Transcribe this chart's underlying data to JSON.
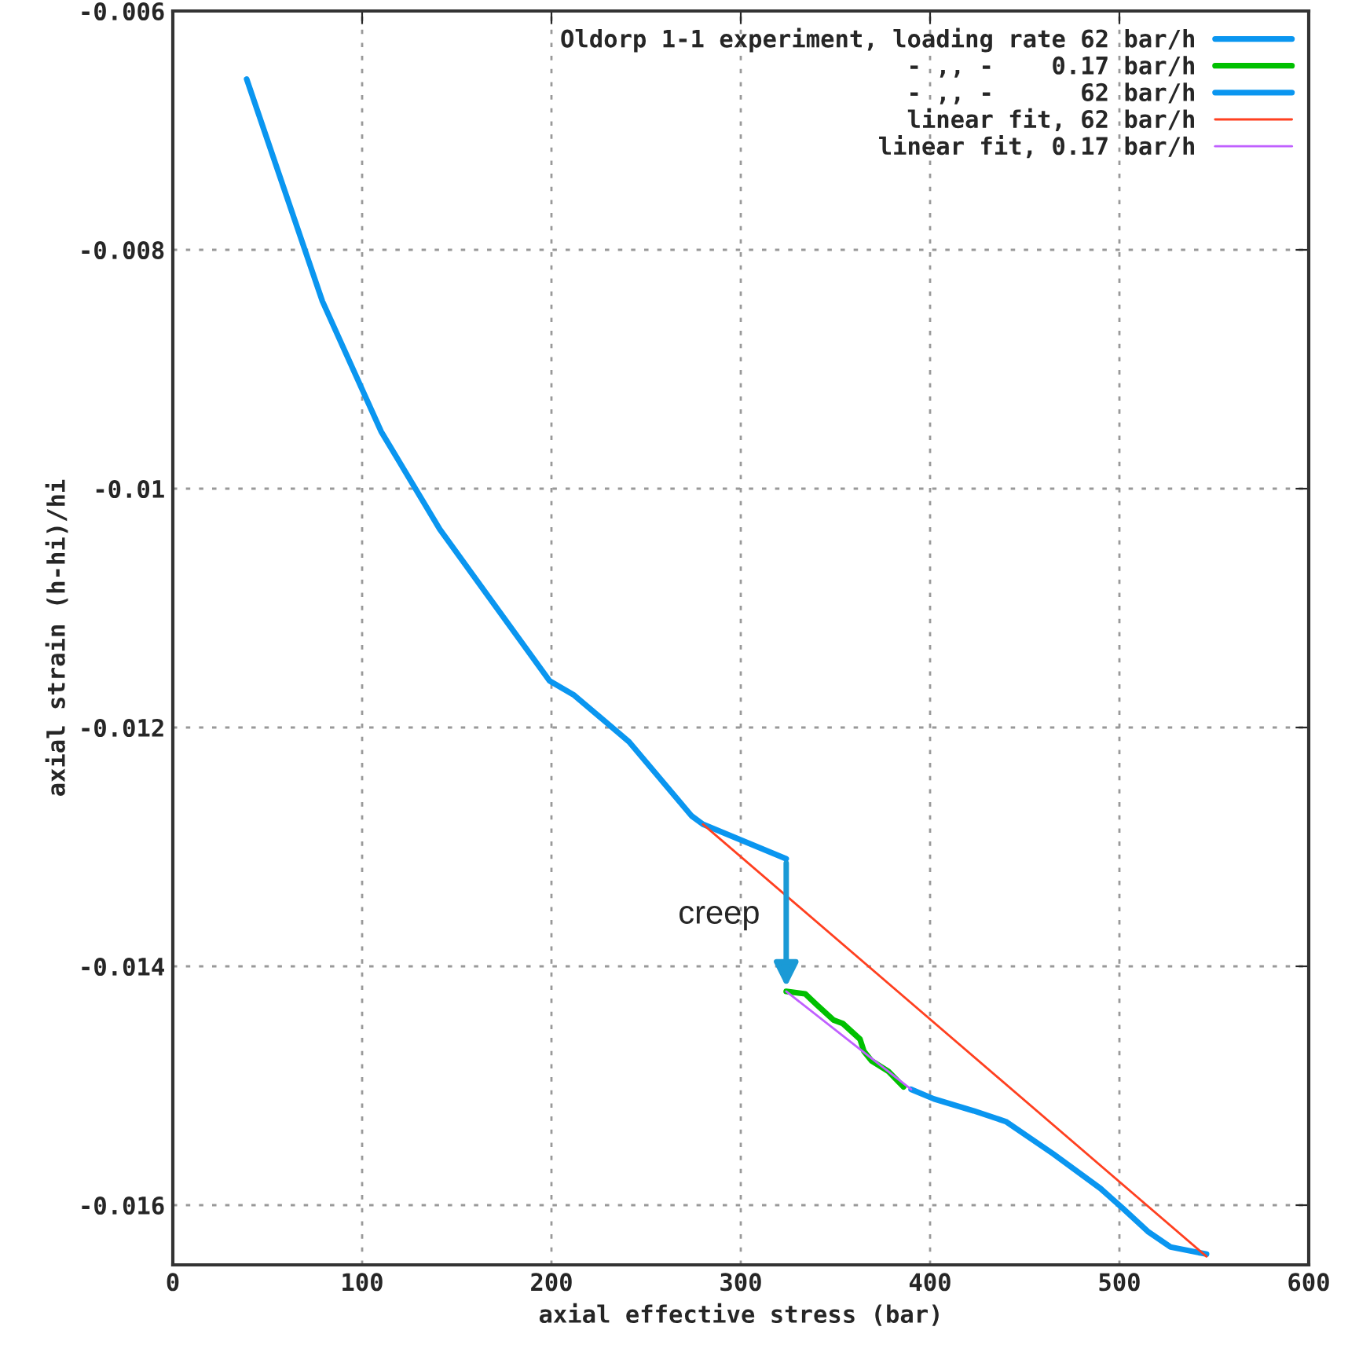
{
  "chart_data": {
    "type": "line",
    "xlabel": "axial effective stress (bar)",
    "ylabel": "axial strain (h-hi)/hi",
    "xlim": [
      0,
      600
    ],
    "xticks": [
      0,
      100,
      200,
      300,
      400,
      500,
      600
    ],
    "ylim": [
      -0.0165,
      -0.006
    ],
    "yticks": [
      -0.016,
      -0.014,
      -0.012,
      -0.01,
      -0.008,
      -0.006
    ],
    "grid": true,
    "legend": "top right",
    "marker": "none",
    "line_style": "solid",
    "series": [
      {
        "name": "Oldorp 1-1 experiment, loading rate 62 bar/h",
        "color": "#0a96f0",
        "x": [
          39,
          79,
          110,
          141,
          199,
          212,
          241,
          274,
          280,
          324
        ],
        "values": [
          -0.00657,
          -0.00843,
          -0.00952,
          -0.01034,
          -0.01161,
          -0.01173,
          -0.01212,
          -0.01274,
          -0.01281,
          -0.0131
        ]
      },
      {
        "name": "- ,, -    0.17 bar/h",
        "color": "#00c000",
        "x": [
          324,
          334,
          340,
          349,
          354,
          363,
          365,
          369,
          378,
          386
        ],
        "values": [
          -0.01421,
          -0.01423,
          -0.01432,
          -0.01445,
          -0.01448,
          -0.01461,
          -0.01471,
          -0.01479,
          -0.01488,
          -0.01501
        ]
      },
      {
        "name": "- ,, -      62 bar/h",
        "color": "#0a96f0",
        "x": [
          390,
          402,
          423,
          440,
          465,
          490,
          502,
          515,
          527,
          546
        ],
        "values": [
          -0.01503,
          -0.01511,
          -0.01521,
          -0.0153,
          -0.01557,
          -0.01586,
          -0.01603,
          -0.01622,
          -0.01635,
          -0.01641
        ]
      },
      {
        "name": "linear fit, 62 bar/h",
        "color": "#ff4020",
        "x": [
          280,
          546
        ],
        "values": [
          -0.01281,
          -0.01643
        ]
      },
      {
        "name": "linear fit, 0.17 bar/h",
        "color": "#c060ff",
        "x": [
          324,
          390
        ],
        "values": [
          -0.01421,
          -0.01503
        ]
      }
    ],
    "annotations": [
      {
        "text": "creep",
        "x": 324,
        "y": -0.01421
      }
    ]
  }
}
